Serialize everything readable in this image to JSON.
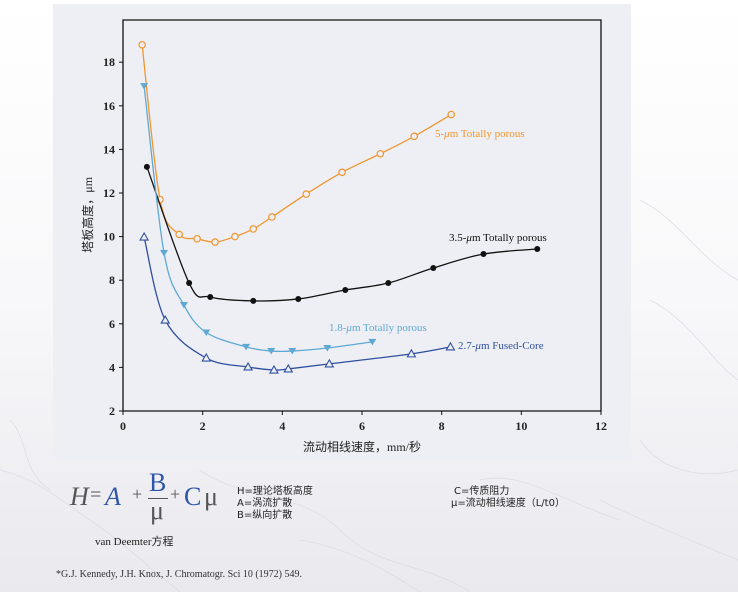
{
  "chart_data": {
    "type": "scatter",
    "title": "",
    "xlabel": "流动相线速度，mm/秒",
    "ylabel": "塔板高度，μm",
    "xlim": [
      0,
      12
    ],
    "ylim": [
      2,
      19.5
    ],
    "x_ticks": [
      "0",
      "2",
      "4",
      "6",
      "8",
      "10",
      "12"
    ],
    "y_ticks": [
      "2",
      "4",
      "6",
      "8",
      "10",
      "12",
      "14",
      "16",
      "18"
    ],
    "grid": false,
    "legend_position": "inline labels near curve ends",
    "series": [
      {
        "name": "5-μm Totally porous",
        "label_prefix": "5-",
        "label_suffix": "m Totally porous",
        "color": "#f0962e",
        "marker": "open-circle",
        "x": [
          0.48,
          0.93,
          1.41,
          1.86,
          2.31,
          2.81,
          3.27,
          3.74,
          4.6,
          5.5,
          6.46,
          7.31,
          8.24
        ],
        "y": [
          18.8,
          11.7,
          10.1,
          9.9,
          9.75,
          10.0,
          10.35,
          10.9,
          11.95,
          12.95,
          13.8,
          14.6,
          15.6
        ]
      },
      {
        "name": "3.5-μm Totally porous",
        "label_prefix": "3.5-",
        "label_suffix": "m Totally porous",
        "color": "#111111",
        "marker": "filled-circle",
        "x": [
          0.6,
          1.66,
          2.19,
          3.27,
          4.4,
          5.58,
          6.66,
          7.79,
          9.05,
          10.4
        ],
        "y": [
          13.2,
          7.87,
          7.23,
          7.05,
          7.14,
          7.55,
          7.87,
          8.56,
          9.2,
          9.43
        ]
      },
      {
        "name": "1.8-μm Totally porous",
        "label_prefix": "1.8-",
        "label_suffix": "m Totally porous",
        "color": "#5fa8d3",
        "marker": "filled-triangle-down",
        "x": [
          0.53,
          1.03,
          1.53,
          2.09,
          3.09,
          3.72,
          4.25,
          5.13,
          6.26
        ],
        "y": [
          16.9,
          9.25,
          6.86,
          5.6,
          4.94,
          4.75,
          4.75,
          4.89,
          5.17
        ]
      },
      {
        "name": "2.7-μm Fused-Core",
        "label_prefix": "2.7-",
        "label_suffix": "m Fused-Core",
        "color": "#2f4f9e",
        "marker": "open-triangle-up",
        "x": [
          0.53,
          1.06,
          2.09,
          3.14,
          3.79,
          4.15,
          5.18,
          7.24,
          8.22
        ],
        "y": [
          9.98,
          6.17,
          4.43,
          4.02,
          3.88,
          3.93,
          4.16,
          4.62,
          4.94
        ]
      }
    ]
  },
  "formula": {
    "H": "H",
    "eq": "=",
    "A": "A",
    "plus1": "+",
    "B": "B",
    "mu_den": "μ",
    "plus2": "+",
    "C": "C",
    "mu": "μ",
    "caption": "van Deemter方程"
  },
  "definitions_left": [
    "H=理论塔板高度",
    "A=涡流扩散",
    "B=纵向扩散"
  ],
  "definitions_right": [
    "C=传质阻力",
    "μ=流动相线速度（L/t0）"
  ],
  "reference": "*G.J. Kennedy, J.H. Knox, J. Chromatogr. Sci 10 (1972) 549.",
  "colors": {
    "panel_bg": "#eeeff5",
    "axis": "#111111",
    "formula_blue": "#2f56a8"
  }
}
